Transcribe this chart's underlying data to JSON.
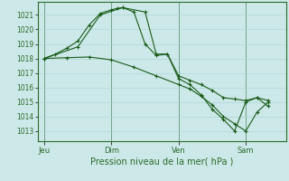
{
  "background_color": "#cce8e8",
  "grid_color": "#aad4d4",
  "line_color": "#1a5c1a",
  "ylabel_ticks": [
    1013,
    1014,
    1015,
    1016,
    1017,
    1018,
    1019,
    1020,
    1021
  ],
  "ylim": [
    1012.3,
    1021.9
  ],
  "xlabel": "Pression niveau de la mer( hPa )",
  "day_labels": [
    "Jeu",
    "Dim",
    "Ven",
    "Sam"
  ],
  "day_positions": [
    0,
    3,
    6,
    9
  ],
  "xlim": [
    -0.3,
    10.8
  ],
  "series1_x": [
    0,
    0.5,
    1.0,
    1.5,
    2.0,
    2.5,
    3.0,
    3.25,
    3.5,
    4.0,
    4.5,
    5.0,
    5.5,
    6.0,
    6.5,
    7.0,
    7.5,
    8.0,
    8.5,
    9.0,
    9.5,
    10.0
  ],
  "series1_y": [
    1018.0,
    1018.3,
    1018.7,
    1019.2,
    1020.3,
    1021.1,
    1021.35,
    1021.45,
    1021.5,
    1021.2,
    1019.0,
    1018.2,
    1018.3,
    1016.8,
    1016.5,
    1016.2,
    1015.8,
    1015.3,
    1015.2,
    1015.1,
    1015.3,
    1014.7
  ],
  "series2_x": [
    0,
    1.0,
    2.0,
    3.0,
    4.0,
    5.0,
    6.0,
    6.5,
    7.0,
    7.5,
    8.0,
    8.5,
    9.0,
    9.5,
    10.0
  ],
  "series2_y": [
    1018.0,
    1018.05,
    1018.1,
    1017.9,
    1017.4,
    1016.8,
    1016.2,
    1015.9,
    1015.4,
    1014.8,
    1014.0,
    1013.5,
    1013.0,
    1014.3,
    1015.0
  ],
  "series3_x": [
    0,
    1.5,
    2.5,
    3.5,
    4.5,
    5.0,
    5.5,
    6.0,
    6.5,
    7.0,
    7.5,
    8.0,
    8.5,
    9.0,
    9.5,
    10.0
  ],
  "series3_y": [
    1018.0,
    1018.8,
    1021.0,
    1021.5,
    1021.2,
    1018.3,
    1018.3,
    1016.6,
    1016.2,
    1015.5,
    1014.5,
    1013.8,
    1013.0,
    1015.0,
    1015.3,
    1015.1
  ],
  "tick_label_color": "#2a6b2a",
  "axis_color": "#2a6b2a",
  "ylabel_fontsize": 5.5,
  "xlabel_fontsize": 7.0,
  "xtick_fontsize": 6.0
}
